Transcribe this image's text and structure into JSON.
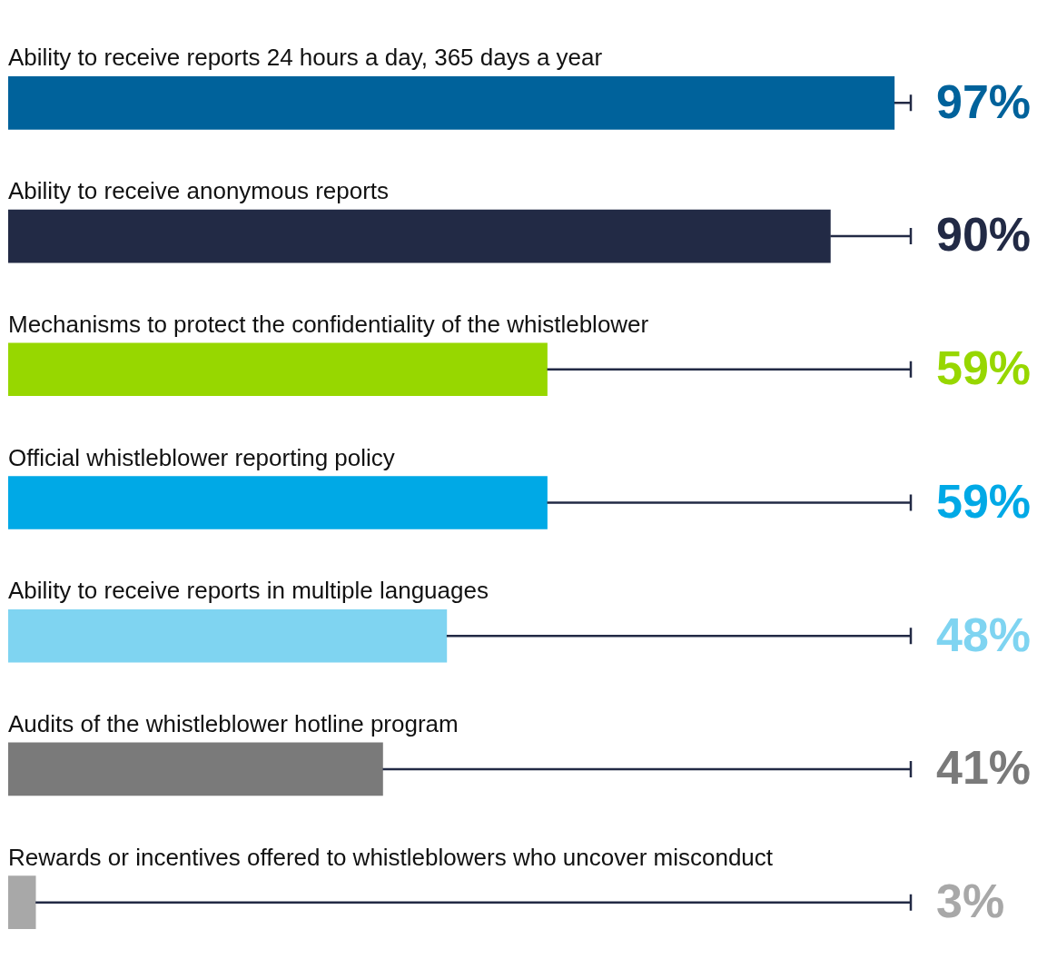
{
  "chart_data": {
    "type": "bar",
    "orientation": "horizontal",
    "categories": [
      "Ability to receive reports 24 hours a day, 365 days a year",
      "Ability to receive anonymous reports",
      "Mechanisms to protect the confidentiality of the whistleblower",
      "Official whistleblower reporting policy",
      "Ability to receive reports in multiple languages",
      "Audits of the whistleblower hotline program",
      "Rewards or incentives offered to whistleblowers who uncover misconduct"
    ],
    "values": [
      97,
      90,
      59,
      59,
      48,
      41,
      3
    ],
    "colors": [
      "#00629b",
      "#222a45",
      "#97d700",
      "#00a9e6",
      "#7fd4f1",
      "#7a7a7a",
      "#a8a8a8"
    ],
    "tick_labels": false,
    "data_labels": true,
    "value_labels": [
      "97%",
      "90%",
      "59%",
      "59%",
      "48%",
      "41%",
      "3%"
    ]
  }
}
